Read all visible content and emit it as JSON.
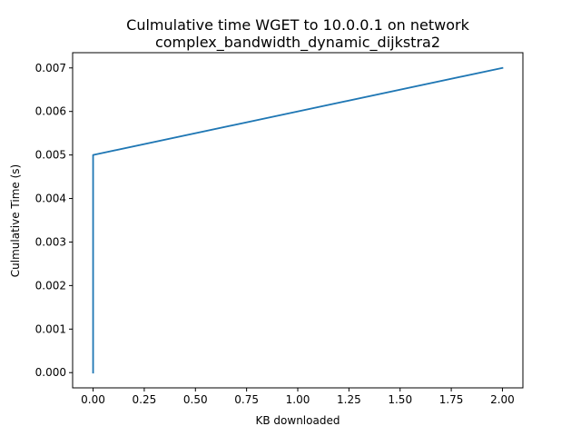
{
  "chart_data": {
    "type": "line",
    "title_lines": [
      "Culmulative time WGET to 10.0.0.1 on network",
      "complex_bandwidth_dynamic_dijkstra2"
    ],
    "xlabel": "KB downloaded",
    "ylabel": "Culmulative Time (s)",
    "xlim": [
      -0.1,
      2.1
    ],
    "ylim": [
      -0.00035,
      0.00735
    ],
    "x_ticks": [
      0.0,
      0.25,
      0.5,
      0.75,
      1.0,
      1.25,
      1.5,
      1.75,
      2.0
    ],
    "x_tick_labels": [
      "0.00",
      "0.25",
      "0.50",
      "0.75",
      "1.00",
      "1.25",
      "1.50",
      "1.75",
      "2.00"
    ],
    "y_ticks": [
      0.0,
      0.001,
      0.002,
      0.003,
      0.004,
      0.005,
      0.006,
      0.007
    ],
    "y_tick_labels": [
      "0.000",
      "0.001",
      "0.002",
      "0.003",
      "0.004",
      "0.005",
      "0.006",
      "0.007"
    ],
    "grid": false,
    "legend": "none",
    "series": [
      {
        "x": [
          0,
          0,
          2
        ],
        "y": [
          0.0,
          0.005,
          0.007
        ],
        "color": "#1f77b4"
      }
    ]
  }
}
